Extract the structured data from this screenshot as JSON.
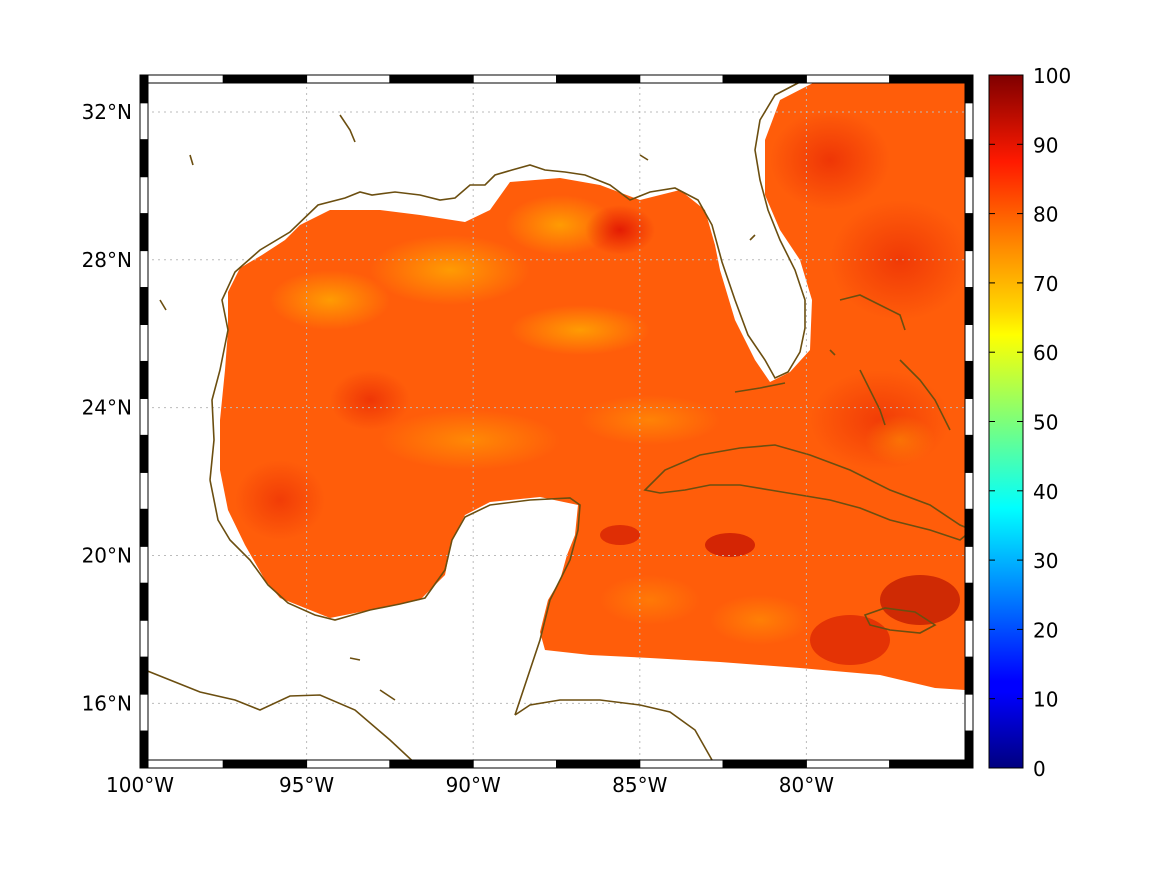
{
  "map": {
    "lon_labels": [
      {
        "lon": -100,
        "label": "100°W"
      },
      {
        "lon": -95,
        "label": "95°W"
      },
      {
        "lon": -90,
        "label": "90°W"
      },
      {
        "lon": -85,
        "label": "85°W"
      },
      {
        "lon": -80,
        "label": "80°W"
      }
    ],
    "lat_labels": [
      {
        "lat": 16,
        "label": "16°N"
      },
      {
        "lat": 20,
        "label": "20°N"
      },
      {
        "lat": 24,
        "label": "24°N"
      },
      {
        "lat": 28,
        "label": "28°N"
      },
      {
        "lat": 32,
        "label": "32°N"
      }
    ],
    "lon_range": [
      -100,
      -75
    ],
    "lat_range": [
      14.25,
      33
    ],
    "grid": true,
    "colors": {
      "ocean_field": "#ff5a00",
      "coastline": "#6b4e10",
      "frame": "#000000"
    }
  },
  "colorbar": {
    "ticks": [
      "0",
      "10",
      "20",
      "30",
      "40",
      "50",
      "60",
      "70",
      "80",
      "90",
      "100"
    ],
    "range": [
      0,
      100
    ],
    "colormap": "jet"
  }
}
